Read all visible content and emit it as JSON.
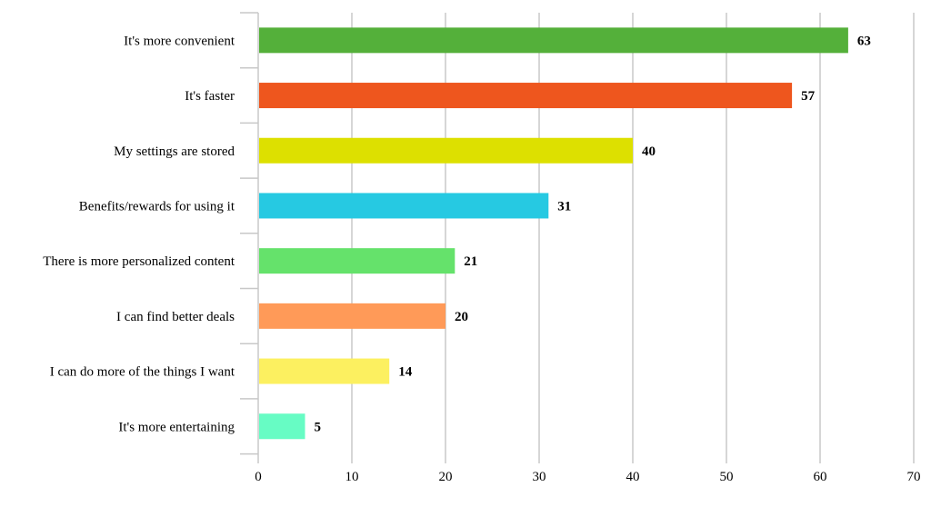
{
  "chart_data": {
    "type": "bar",
    "orientation": "horizontal",
    "categories": [
      "It's more convenient",
      "It's faster",
      "My settings are stored",
      "Benefits/rewards for using it",
      "There is more personalized content",
      "I can find better deals",
      "I can do more of the things I want",
      "It's more entertaining"
    ],
    "values": [
      63,
      57,
      40,
      31,
      21,
      20,
      14,
      5
    ],
    "colors": [
      "#54b03a",
      "#ee561e",
      "#dde000",
      "#26c9e2",
      "#65e26b",
      "#ff9a58",
      "#fcf060",
      "#67fcc4"
    ],
    "xticks": [
      0,
      10,
      20,
      30,
      40,
      50,
      60,
      70
    ],
    "xlim": [
      0,
      70
    ],
    "title": "",
    "xlabel": "",
    "ylabel": "",
    "grid": "vertical",
    "legend": "none",
    "data_labels": true
  }
}
